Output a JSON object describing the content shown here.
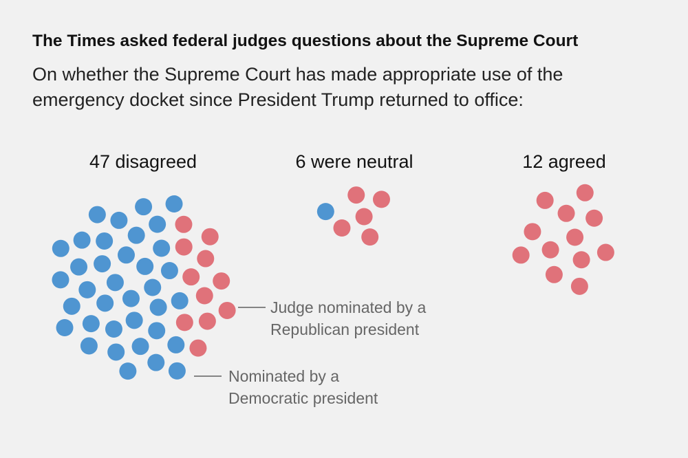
{
  "chart_data": {
    "type": "dot-cluster",
    "title": "The Times asked federal judges questions about the Supreme Court",
    "subtitle": "On whether the Supreme Court has made appropriate use of the emergency docket since President Trump returned to office:",
    "categories": [
      "47 disagreed",
      "6 were neutral",
      "12 agreed"
    ],
    "series": [
      {
        "name": "Judge nominated by a Republican president",
        "color": "#e0727a",
        "values": [
          11,
          5,
          12
        ]
      },
      {
        "name": "Nominated by a Democratic president",
        "color": "#4f95d1",
        "values": [
          36,
          1,
          0
        ]
      }
    ]
  }
}
